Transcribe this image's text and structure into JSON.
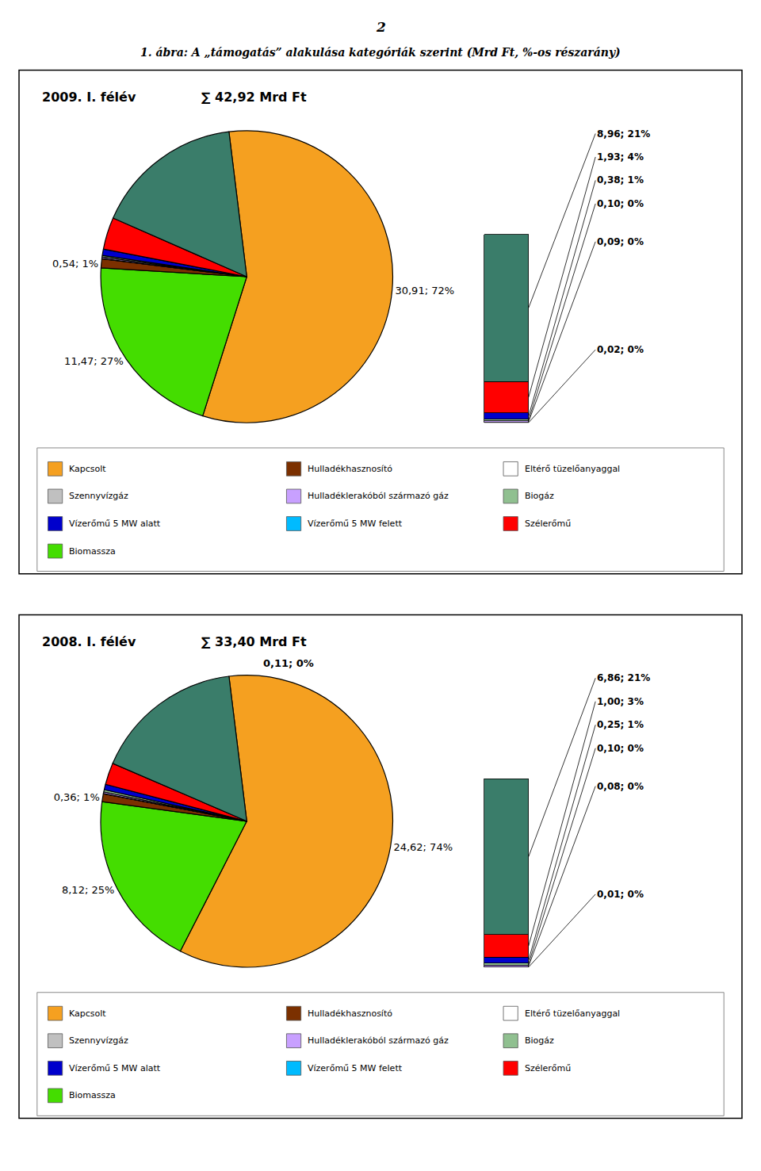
{
  "title": "1. ábra: A „támogatás” alakulása kategóriák szerint (Mrd Ft, %-os részarány)",
  "annotations": [
    "2"
  ],
  "legend_entries": [
    {
      "name": "Kapcsolt",
      "color": "#F5A020"
    },
    {
      "name": "Hulladékhasznosító",
      "color": "#7B3000"
    },
    {
      "name": "Eltérő tüzelőanyaggal",
      "color": "#FFFFFF"
    },
    {
      "name": "Szennyvízgáz",
      "color": "#C0C0C0"
    },
    {
      "name": "Hulladéklerakóból származó gáz",
      "color": "#C8A0FF"
    },
    {
      "name": "Biogáz",
      "color": "#90C090"
    },
    {
      "name": "Vízerőmű 5 MW alatt",
      "color": "#0000CC"
    },
    {
      "name": "Vízerőmű 5 MW felett",
      "color": "#00BBFF"
    },
    {
      "name": "Szélerőmű",
      "color": "#FF0000"
    },
    {
      "name": "Biomassza",
      "color": "#44DD00"
    }
  ],
  "chart_data": [
    {
      "type": "pie",
      "title": "2009. I. félév",
      "subtitle": "∑ 42,92 Mrd Ft",
      "values": [
        30.91,
        11.47,
        0.54,
        0.02,
        0.09,
        0.1,
        0.38,
        1.93,
        8.96
      ],
      "colors": [
        "#F5A020",
        "#44DD00",
        "#7B3000",
        "#C0C0C0",
        "#C8A0FF",
        "#90C090",
        "#0000CC",
        "#FF0000",
        "#3A7D6A"
      ],
      "value_labels": [
        "30,91; 72%",
        "11,47; 27%",
        "0,54; 1%",
        null,
        null,
        null,
        null,
        null,
        null
      ]
    },
    {
      "type": "bar",
      "stacked": true,
      "categories": [
        null
      ],
      "series": [
        {
          "color": "#C0C0C0",
          "values": [
            0.02
          ],
          "value_labels": [
            "0,02; 0%"
          ]
        },
        {
          "color": "#C8A0FF",
          "values": [
            0.09
          ],
          "value_labels": [
            "0,09; 0%"
          ]
        },
        {
          "color": "#90C090",
          "values": [
            0.1
          ],
          "value_labels": [
            "0,10; 0%"
          ]
        },
        {
          "color": "#0000CC",
          "values": [
            0.38
          ],
          "value_labels": [
            "0,38; 1%"
          ]
        },
        {
          "color": "#FF0000",
          "values": [
            1.93
          ],
          "value_labels": [
            "1,93; 4%"
          ]
        },
        {
          "color": "#3A7D6A",
          "values": [
            8.96
          ],
          "value_labels": [
            "8,96; 21%"
          ]
        }
      ],
      "ylim": [
        0,
        17.794
      ],
      "tick_labels": false
    },
    {
      "type": "pie",
      "title": "2008. I. félév",
      "subtitle": "∑ 33,40 Mrd Ft",
      "values": [
        24.62,
        8.12,
        0.36,
        0.01,
        0.08,
        0.1,
        0.25,
        1.0,
        6.86
      ],
      "colors": [
        "#F5A020",
        "#44DD00",
        "#7B3000",
        "#C0C0C0",
        "#C8A0FF",
        "#90C090",
        "#0000CC",
        "#FF0000",
        "#3A7D6A"
      ],
      "value_labels": [
        "24,62; 74%",
        "8,12; 25%",
        "0,36; 1%",
        null,
        null,
        null,
        null,
        null,
        null
      ],
      "annotations": [
        "0,11; 0%"
      ]
    },
    {
      "type": "bar",
      "stacked": true,
      "categories": [
        null
      ],
      "series": [
        {
          "color": "#C0C0C0",
          "values": [
            0.01
          ],
          "value_labels": [
            "0,01; 0%"
          ]
        },
        {
          "color": "#C8A0FF",
          "values": [
            0.08
          ],
          "value_labels": [
            "0,08; 0%"
          ]
        },
        {
          "color": "#90C090",
          "values": [
            0.1
          ],
          "value_labels": [
            "0,10; 0%"
          ]
        },
        {
          "color": "#0000CC",
          "values": [
            0.25
          ],
          "value_labels": [
            "0,25; 1%"
          ]
        },
        {
          "color": "#FF0000",
          "values": [
            1.0
          ],
          "value_labels": [
            "1,00; 3%"
          ]
        },
        {
          "color": "#3A7D6A",
          "values": [
            6.86
          ],
          "value_labels": [
            "6,86; 21%"
          ]
        }
      ],
      "ylim": [
        0,
        12.865
      ],
      "tick_labels": false
    }
  ]
}
